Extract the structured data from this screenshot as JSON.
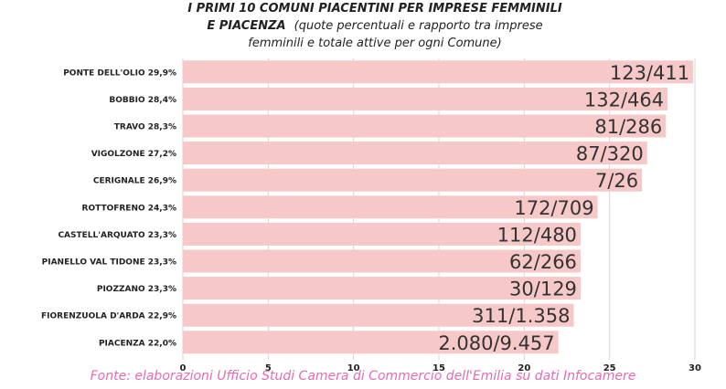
{
  "title": {
    "line1": "I PRIMI 10 COMUNI PIACENTINI PER IMPRESE FEMMINILI",
    "line2_bold": "E PIACENZA",
    "line2_normal": "(quote percentuali e rapporto tra imprese",
    "line3": "femminili e totale attive per ogni Comune)"
  },
  "source": "Fonte: elaborazioni Ufficio Studi Camera di Commercio  dell'Emilia su dati Infocamere",
  "colors": {
    "bar": "#f6c8c8",
    "grid": "#d6d6d6",
    "text": "#222222"
  },
  "chart_data": {
    "type": "bar",
    "orientation": "horizontal",
    "categories": [
      "PONTE DELL'OLIO 29,9%",
      "BOBBIO 28,4%",
      "TRAVO 28,3%",
      "VIGOLZONE 27,2%",
      "CERIGNALE 26,9%",
      "ROTTOFRENO 24,3%",
      "CASTELL'ARQUATO 23,3%",
      "PIANELLO VAL TIDONE 23,3%",
      "PIOZZANO 23,3%",
      "FIORENZUOLA D'ARDA 22,9%",
      "PIACENZA 22,0%"
    ],
    "values": [
      29.9,
      28.4,
      28.3,
      27.2,
      26.9,
      24.3,
      23.3,
      23.3,
      23.3,
      22.9,
      22.0
    ],
    "data_labels": [
      "123/411",
      "132/464",
      "81/286",
      "87/320",
      "7/26",
      "172/709",
      "112/480",
      "62/266",
      "30/129",
      "311/1.358",
      "2.080/9.457"
    ],
    "xlim": [
      0,
      30
    ],
    "xticks": [
      "0",
      "5",
      "10",
      "15",
      "20",
      "25",
      "30"
    ],
    "grid": true
  }
}
